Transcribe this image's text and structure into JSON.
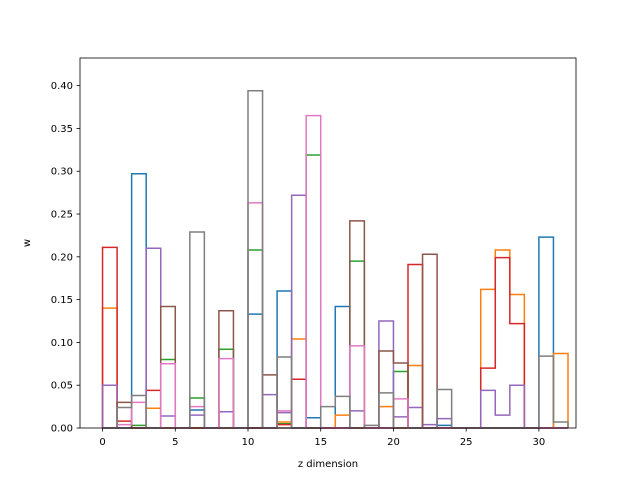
{
  "chart_data": {
    "type": "histogram-step",
    "title": "",
    "xlabel": "z dimension",
    "ylabel": "w",
    "xlim": [
      -1.55,
      32.55
    ],
    "ylim": [
      0,
      0.4323
    ],
    "bin_width": 1,
    "bin_start": 0,
    "xticks": [
      0,
      5,
      10,
      15,
      20,
      25,
      30
    ],
    "yticks": [
      0.0,
      0.05,
      0.1,
      0.15,
      0.2,
      0.25,
      0.3,
      0.35,
      0.4
    ],
    "grid": false,
    "legend": "none",
    "series": [
      {
        "color": "#1f77b4",
        "values": [
          0,
          0,
          0.297,
          0,
          0,
          0,
          0.021,
          0,
          0,
          0,
          0.133,
          0,
          0.16,
          0,
          0.012,
          0,
          0.142,
          0,
          0,
          0,
          0,
          0,
          0,
          0.003,
          0,
          0,
          0,
          0,
          0,
          0,
          0.223,
          0
        ]
      },
      {
        "color": "#ff7f0e",
        "values": [
          0.14,
          0,
          0,
          0.023,
          0,
          0,
          0,
          0,
          0,
          0,
          0,
          0,
          0.007,
          0.104,
          0,
          0,
          0.015,
          0,
          0,
          0.025,
          0,
          0.073,
          0,
          0,
          0,
          0,
          0.162,
          0.208,
          0.156,
          0,
          0,
          0.087
        ]
      },
      {
        "color": "#2ca02c",
        "values": [
          0,
          0,
          0.003,
          0,
          0.08,
          0,
          0.035,
          0,
          0.092,
          0,
          0.208,
          0,
          0.005,
          0,
          0.319,
          0,
          0,
          0.195,
          0,
          0,
          0.066,
          0,
          0,
          0,
          0,
          0,
          0,
          0,
          0,
          0,
          0,
          0
        ]
      },
      {
        "color": "#d62728",
        "values": [
          0.211,
          0.008,
          0,
          0.044,
          0,
          0,
          0,
          0,
          0,
          0,
          0,
          0,
          0.004,
          0.057,
          0,
          0,
          0,
          0,
          0,
          0,
          0,
          0.191,
          0,
          0,
          0,
          0,
          0.07,
          0.199,
          0.122,
          0,
          0,
          0
        ]
      },
      {
        "color": "#9467bd",
        "values": [
          0.05,
          0,
          0,
          0.21,
          0.014,
          0,
          0.015,
          0,
          0.019,
          0,
          0,
          0.039,
          0.018,
          0.272,
          0,
          0,
          0,
          0.02,
          0,
          0.125,
          0.013,
          0.024,
          0.004,
          0.011,
          0,
          0,
          0.044,
          0.015,
          0.05,
          0,
          0,
          0
        ]
      },
      {
        "color": "#8c564b",
        "values": [
          0,
          0.03,
          0,
          0,
          0.142,
          0,
          0,
          0,
          0.137,
          0,
          0,
          0.062,
          0,
          0,
          0,
          0,
          0,
          0.242,
          0,
          0.09,
          0.076,
          0,
          0.203,
          0,
          0,
          0,
          0,
          0,
          0,
          0,
          0,
          0
        ]
      },
      {
        "color": "#e377c2",
        "values": [
          0,
          0.004,
          0.03,
          0,
          0.075,
          0,
          0.025,
          0,
          0.081,
          0,
          0.263,
          0,
          0.02,
          0,
          0.365,
          0,
          0,
          0.096,
          0,
          0,
          0.034,
          0,
          0,
          0,
          0,
          0,
          0,
          0,
          0,
          0,
          0,
          0
        ]
      },
      {
        "color": "#7f7f7f",
        "values": [
          0,
          0.024,
          0.038,
          0,
          0,
          0,
          0.229,
          0,
          0,
          0,
          0.394,
          0,
          0.083,
          0,
          0,
          0.025,
          0.037,
          0,
          0.003,
          0.041,
          0,
          0,
          0,
          0.045,
          0,
          0,
          0,
          0,
          0,
          0,
          0.084,
          0.007
        ]
      }
    ]
  }
}
